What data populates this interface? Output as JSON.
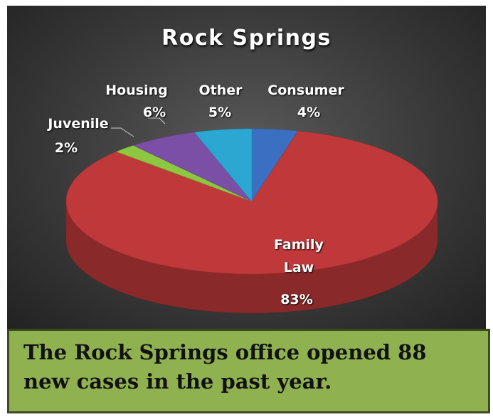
{
  "chart_data": {
    "type": "pie3d",
    "title": "Rock Springs",
    "categories": [
      "Consumer",
      "Family Law",
      "Juvenile",
      "Housing",
      "Other"
    ],
    "values": [
      4,
      83,
      2,
      6,
      5
    ],
    "value_labels": [
      "4%",
      "83%",
      "2%",
      "6%",
      "5%"
    ],
    "colors": [
      "#3b6fc2",
      "#c0393a",
      "#8dc63f",
      "#7b4fa6",
      "#2ba7d2"
    ]
  },
  "caption": "The Rock Springs office opened 88 new cases in the past year."
}
